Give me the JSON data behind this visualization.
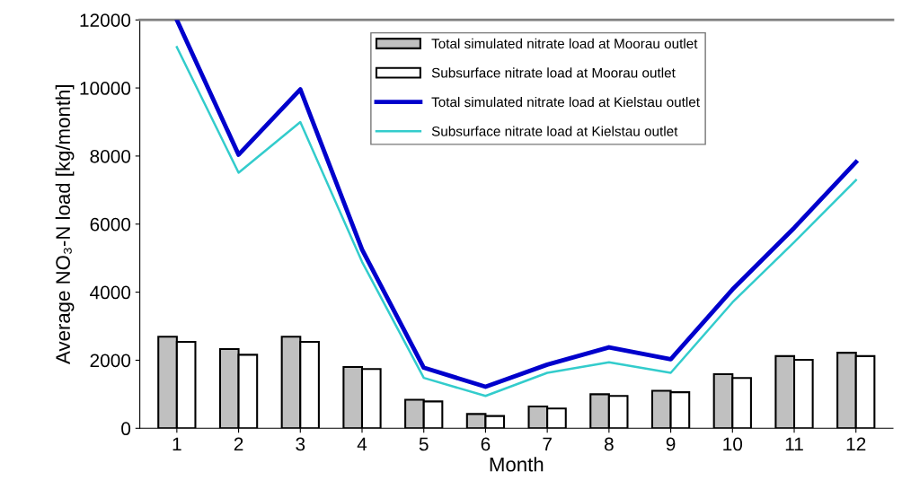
{
  "chart_data": {
    "type": "bar",
    "xlabel": "Month",
    "ylabel": "Average NO₃-N load [kg/month]",
    "categories": [
      "1",
      "2",
      "3",
      "4",
      "5",
      "6",
      "7",
      "8",
      "9",
      "10",
      "11",
      "12"
    ],
    "series": [
      {
        "name": "Total simulated nitrate load at Moorau outlet",
        "color": "#c0c0c0",
        "values": [
          2690,
          2330,
          2690,
          1800,
          840,
          420,
          640,
          1000,
          1100,
          1590,
          2120,
          2220
        ]
      },
      {
        "name": "Subsurface nitrate load at Moorau outlet",
        "color": "#ffffff",
        "values": [
          2540,
          2160,
          2540,
          1740,
          790,
          360,
          580,
          950,
          1060,
          1480,
          2010,
          2120
        ]
      },
      {
        "name": "Total simulated nitrate load at Kielstau outlet",
        "type": "line",
        "color": "#0000cc",
        "values": [
          12000,
          8040,
          9960,
          5250,
          1780,
          1220,
          1870,
          2380,
          2030,
          4080,
          5890,
          7820
        ]
      },
      {
        "name": "Subsurface nitrate load at Kielstau outlet",
        "type": "line",
        "color": "#33cccc",
        "values": [
          11200,
          7510,
          9000,
          4890,
          1480,
          950,
          1630,
          1940,
          1630,
          3700,
          5470,
          7290
        ]
      }
    ],
    "ylim": [
      0,
      12000
    ],
    "yticks": [
      0,
      2000,
      4000,
      6000,
      8000,
      10000,
      12000
    ],
    "grid": false,
    "legend": "top right",
    "marker": "none",
    "line_style": "solid"
  }
}
